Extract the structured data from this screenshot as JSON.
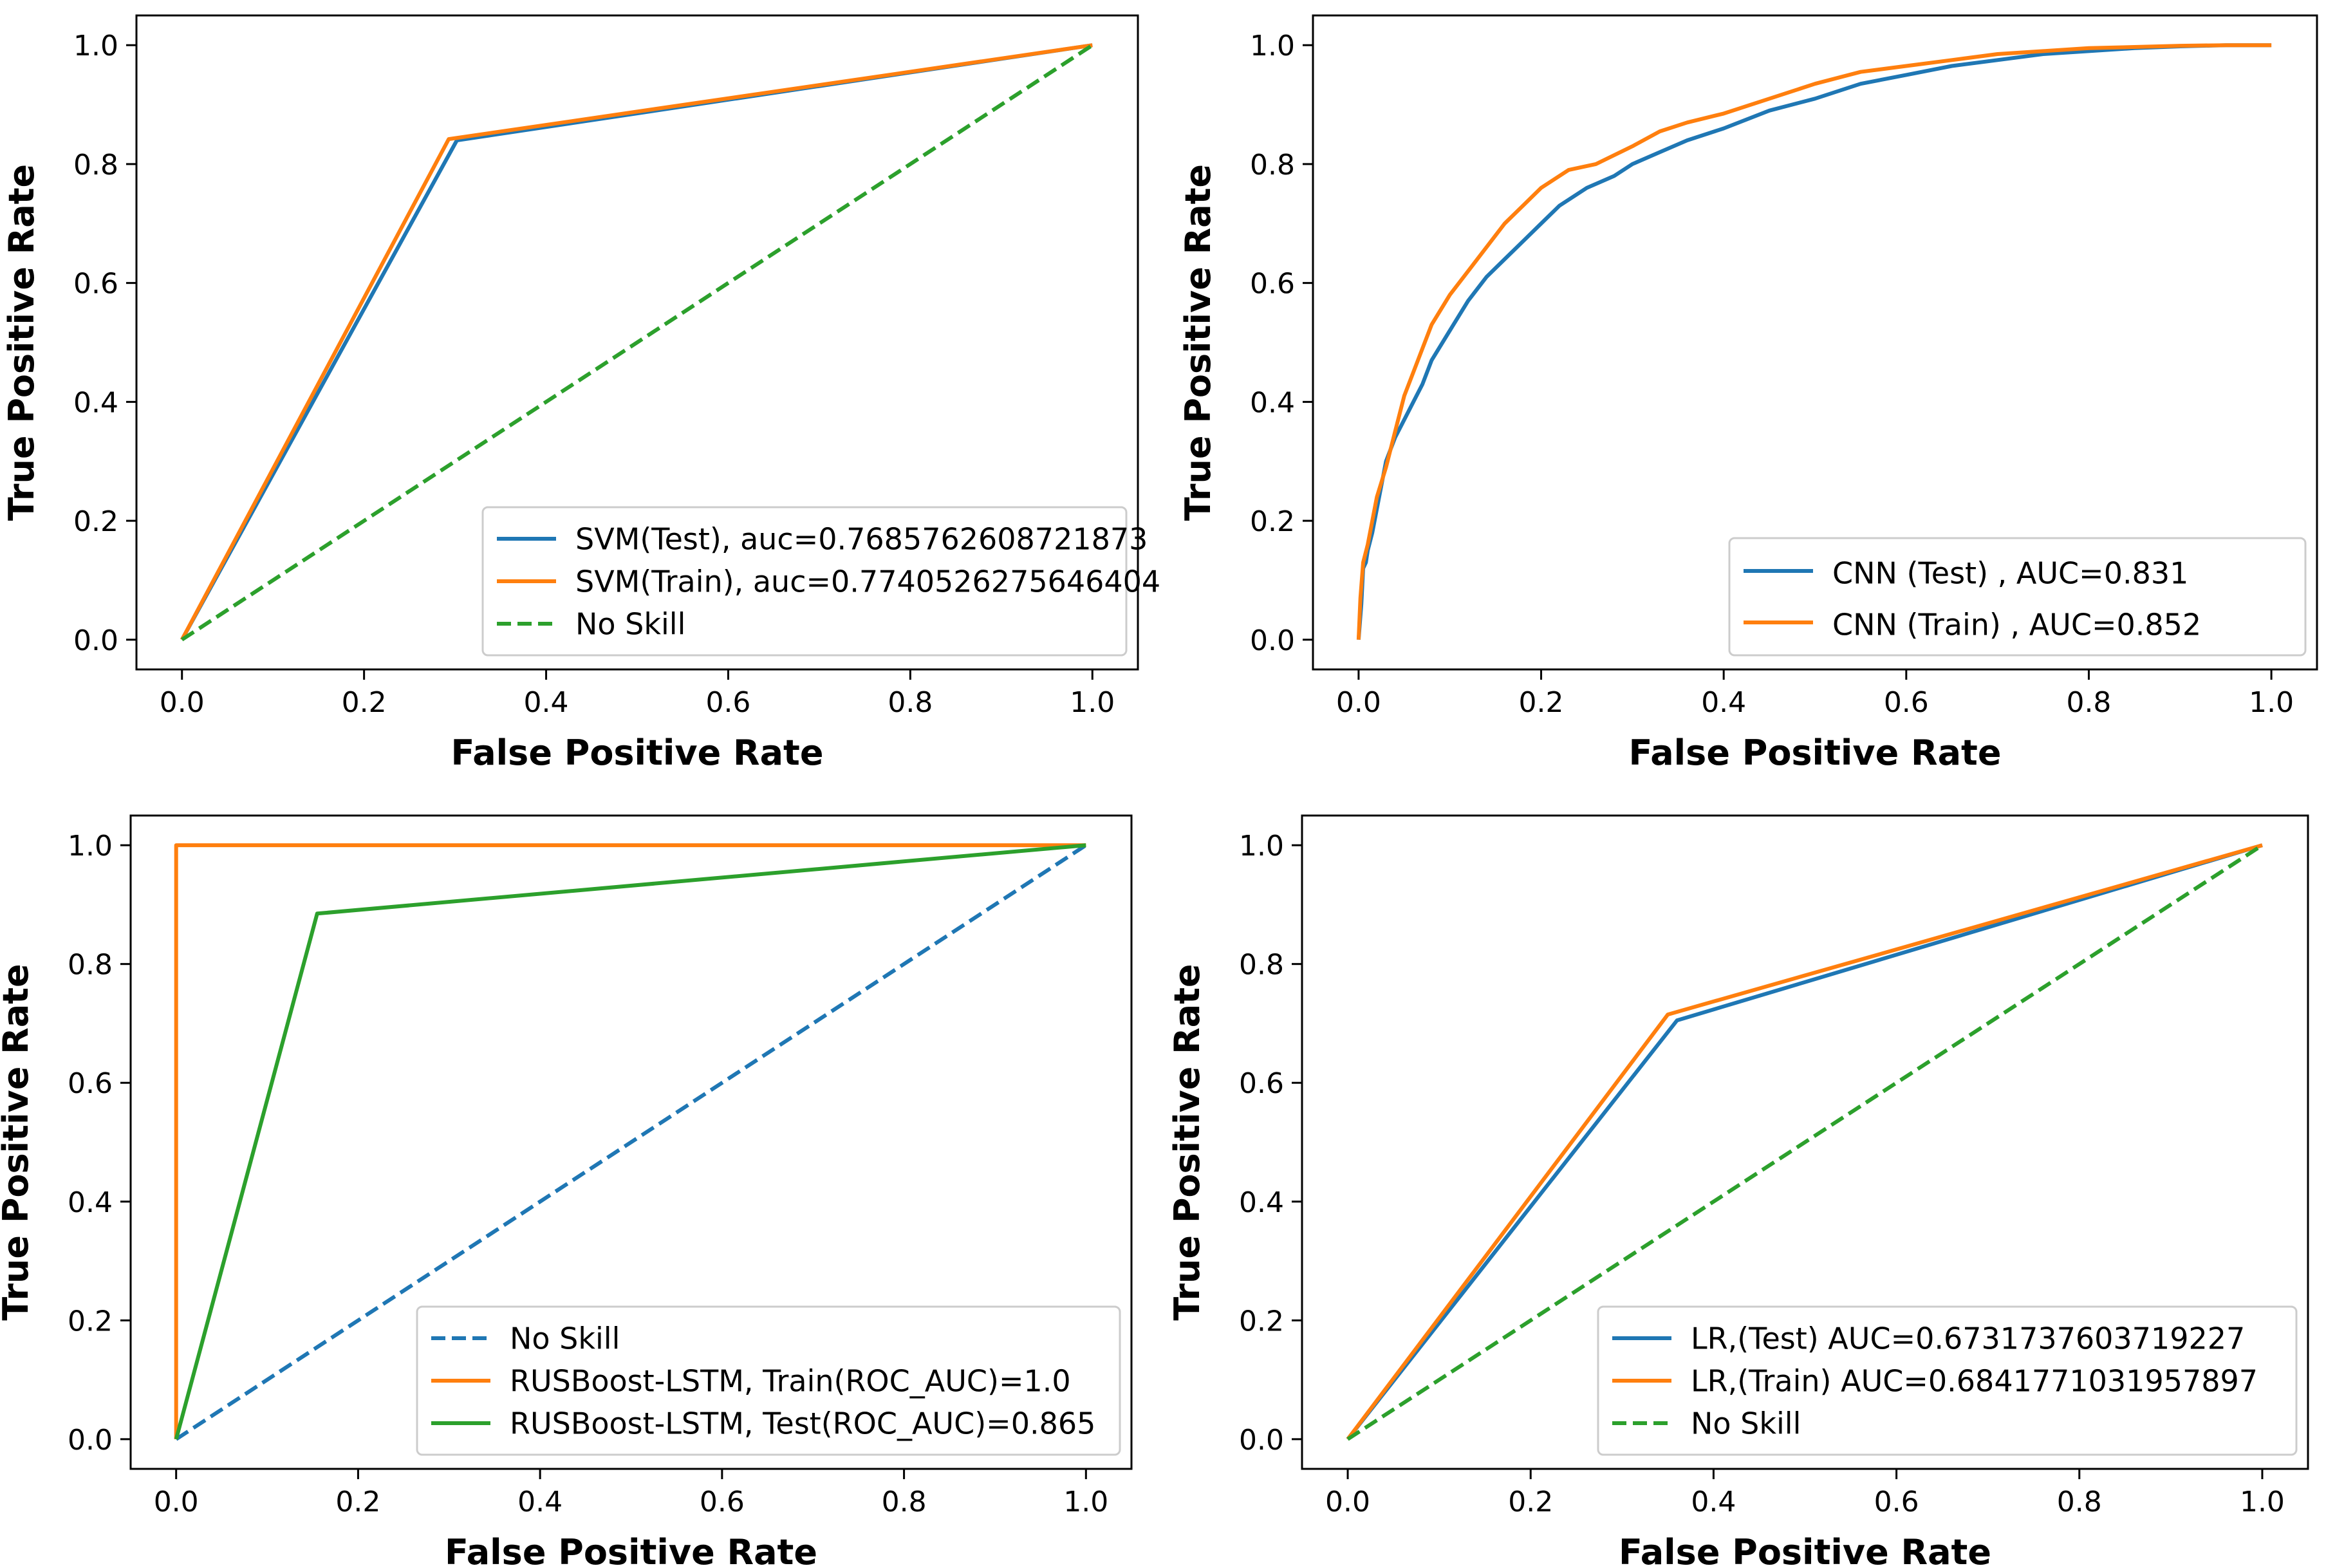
{
  "colors": {
    "blue": "#1f77b4",
    "orange": "#ff7f0e",
    "green": "#2ca02c",
    "frame": "#000000",
    "legend_border": "#cccccc"
  },
  "chart_data": [
    {
      "type": "line",
      "xlabel": "False Positive Rate",
      "ylabel": "True Positive Rate",
      "xlim": [
        -0.05,
        1.05
      ],
      "ylim": [
        -0.05,
        1.05
      ],
      "xticks": [
        "0.0",
        "0.2",
        "0.4",
        "0.6",
        "0.8",
        "1.0"
      ],
      "yticks": [
        "0.0",
        "0.2",
        "0.4",
        "0.6",
        "0.8",
        "1.0"
      ],
      "grid": false,
      "legend_position": "lower-right",
      "series": [
        {
          "name": "SVM(Test), auc=0.7685762608721873",
          "color": "blue",
          "style": "solid",
          "x": [
            0,
            0.302,
            1
          ],
          "y": [
            0,
            0.84,
            1
          ]
        },
        {
          "name": "SVM(Train), auc=0.7740526275646404",
          "color": "orange",
          "style": "solid",
          "x": [
            0,
            0.293,
            1
          ],
          "y": [
            0,
            0.842,
            1
          ]
        },
        {
          "name": "No Skill",
          "color": "green",
          "style": "dashed",
          "x": [
            0,
            1
          ],
          "y": [
            0,
            1
          ]
        }
      ]
    },
    {
      "type": "line",
      "xlabel": "False Positive Rate",
      "ylabel": "True Positive Rate",
      "xlim": [
        -0.05,
        1.05
      ],
      "ylim": [
        -0.05,
        1.05
      ],
      "xticks": [
        "0.0",
        "0.2",
        "0.4",
        "0.6",
        "0.8",
        "1.0"
      ],
      "yticks": [
        "0.0",
        "0.2",
        "0.4",
        "0.6",
        "0.8",
        "1.0"
      ],
      "grid": false,
      "legend_position": "lower-right",
      "series": [
        {
          "name": "CNN (Test) , AUC=0.831",
          "color": "blue",
          "style": "solid",
          "x": [
            0,
            0.003,
            0.005,
            0.008,
            0.01,
            0.015,
            0.02,
            0.025,
            0.03,
            0.04,
            0.05,
            0.06,
            0.07,
            0.08,
            0.1,
            0.12,
            0.14,
            0.16,
            0.18,
            0.2,
            0.22,
            0.25,
            0.28,
            0.3,
            0.33,
            0.36,
            0.4,
            0.45,
            0.5,
            0.55,
            0.6,
            0.65,
            0.7,
            0.75,
            0.8,
            0.85,
            0.9,
            0.95,
            1.0
          ],
          "y": [
            0,
            0.06,
            0.12,
            0.13,
            0.15,
            0.18,
            0.22,
            0.26,
            0.3,
            0.34,
            0.37,
            0.4,
            0.43,
            0.47,
            0.52,
            0.57,
            0.61,
            0.64,
            0.67,
            0.7,
            0.73,
            0.76,
            0.78,
            0.8,
            0.82,
            0.84,
            0.86,
            0.89,
            0.91,
            0.935,
            0.95,
            0.965,
            0.975,
            0.985,
            0.99,
            0.995,
            0.998,
            1.0,
            1.0
          ]
        },
        {
          "name": "CNN (Train) , AUC=0.852",
          "color": "orange",
          "style": "solid",
          "x": [
            0,
            0.002,
            0.005,
            0.01,
            0.015,
            0.02,
            0.03,
            0.04,
            0.05,
            0.06,
            0.07,
            0.08,
            0.1,
            0.12,
            0.14,
            0.16,
            0.18,
            0.2,
            0.23,
            0.26,
            0.3,
            0.33,
            0.36,
            0.4,
            0.45,
            0.5,
            0.55,
            0.6,
            0.65,
            0.7,
            0.75,
            0.8,
            0.85,
            0.9,
            0.95,
            1.0
          ],
          "y": [
            0,
            0.07,
            0.13,
            0.16,
            0.2,
            0.24,
            0.29,
            0.35,
            0.41,
            0.45,
            0.49,
            0.53,
            0.58,
            0.62,
            0.66,
            0.7,
            0.73,
            0.76,
            0.79,
            0.8,
            0.83,
            0.855,
            0.87,
            0.885,
            0.91,
            0.935,
            0.955,
            0.965,
            0.975,
            0.985,
            0.99,
            0.995,
            0.997,
            0.999,
            1.0,
            1.0
          ]
        }
      ]
    },
    {
      "type": "line",
      "xlabel": "False Positive Rate",
      "ylabel": "True Positive Rate",
      "xlim": [
        -0.05,
        1.05
      ],
      "ylim": [
        -0.05,
        1.05
      ],
      "xticks": [
        "0.0",
        "0.2",
        "0.4",
        "0.6",
        "0.8",
        "1.0"
      ],
      "yticks": [
        "0.0",
        "0.2",
        "0.4",
        "0.6",
        "0.8",
        "1.0"
      ],
      "grid": false,
      "legend_position": "lower-right",
      "series": [
        {
          "name": "No Skill",
          "color": "blue",
          "style": "dashed",
          "x": [
            0,
            1
          ],
          "y": [
            0,
            1
          ]
        },
        {
          "name": "RUSBoost-LSTM, Train(ROC_AUC)=1.0",
          "color": "orange",
          "style": "solid",
          "x": [
            0,
            0,
            1
          ],
          "y": [
            0,
            1,
            1
          ]
        },
        {
          "name": "RUSBoost-LSTM, Test(ROC_AUC)=0.865",
          "color": "green",
          "style": "solid",
          "x": [
            0,
            0.155,
            1
          ],
          "y": [
            0,
            0.885,
            1
          ]
        }
      ]
    },
    {
      "type": "line",
      "xlabel": "False Positive Rate",
      "ylabel": "True Positive Rate",
      "xlim": [
        -0.05,
        1.05
      ],
      "ylim": [
        -0.05,
        1.05
      ],
      "xticks": [
        "0.0",
        "0.2",
        "0.4",
        "0.6",
        "0.8",
        "1.0"
      ],
      "yticks": [
        "0.0",
        "0.2",
        "0.4",
        "0.6",
        "0.8",
        "1.0"
      ],
      "grid": false,
      "legend_position": "lower-right",
      "series": [
        {
          "name": "LR,(Test) AUC=0.6731737603719227",
          "color": "blue",
          "style": "solid",
          "x": [
            0,
            0.36,
            1
          ],
          "y": [
            0,
            0.705,
            1
          ]
        },
        {
          "name": "LR,(Train) AUC=0.6841771031957897",
          "color": "orange",
          "style": "solid",
          "x": [
            0,
            0.35,
            1
          ],
          "y": [
            0,
            0.715,
            1
          ]
        },
        {
          "name": "No Skill",
          "color": "green",
          "style": "dashed",
          "x": [
            0,
            1
          ],
          "y": [
            0,
            1
          ]
        }
      ]
    }
  ]
}
